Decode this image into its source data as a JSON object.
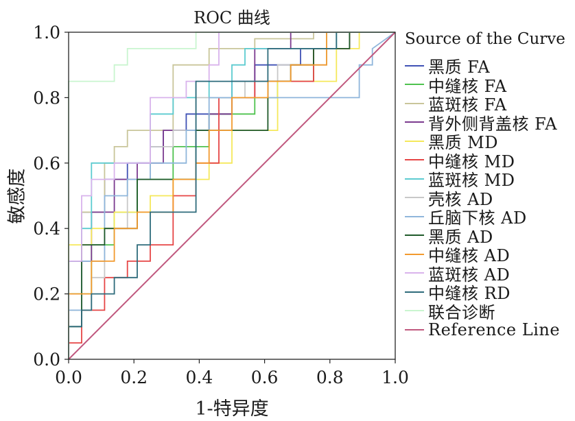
{
  "chart_data": {
    "type": "line",
    "title": "ROC 曲线",
    "xlabel": "1-特异度",
    "ylabel": "敏感度",
    "xlim": [
      0,
      1
    ],
    "ylim": [
      0,
      1
    ],
    "xticks": [
      "0.0",
      "0.2",
      "0.4",
      "0.6",
      "0.8",
      "1.0"
    ],
    "yticks": [
      "0.0",
      "0.2",
      "0.4",
      "0.6",
      "0.8",
      "1.0"
    ],
    "legend_title": "Source of the Curve",
    "legend_position": "right",
    "series": [
      {
        "name": "黑质 FA",
        "color": "#3f51b5",
        "x": [
          0,
          0,
          0.04,
          0.04,
          0.11,
          0.11,
          0.18,
          0.18,
          0.25,
          0.25,
          0.29,
          0.29,
          0.36,
          0.36,
          0.5,
          0.5,
          0.57,
          0.57,
          0.71,
          0.71,
          0.86,
          0.86,
          1
        ],
        "y": [
          0,
          0.3,
          0.3,
          0.45,
          0.45,
          0.55,
          0.55,
          0.6,
          0.6,
          0.65,
          0.65,
          0.7,
          0.7,
          0.75,
          0.75,
          0.85,
          0.85,
          0.9,
          0.9,
          0.95,
          0.95,
          1,
          1
        ]
      },
      {
        "name": "中缝核 FA",
        "color": "#4ec24e",
        "x": [
          0,
          0,
          0.07,
          0.07,
          0.14,
          0.14,
          0.21,
          0.21,
          0.32,
          0.32,
          0.43,
          0.43,
          0.57,
          0.57,
          0.64,
          0.64,
          0.75,
          0.75,
          0.86,
          0.86,
          1
        ],
        "y": [
          0,
          0.2,
          0.2,
          0.35,
          0.35,
          0.45,
          0.45,
          0.55,
          0.55,
          0.65,
          0.65,
          0.75,
          0.75,
          0.8,
          0.8,
          0.85,
          0.85,
          0.95,
          0.95,
          1,
          1
        ]
      },
      {
        "name": "蓝斑核 FA",
        "color": "#c9c59a",
        "x": [
          0,
          0,
          0.04,
          0.04,
          0.11,
          0.11,
          0.14,
          0.14,
          0.18,
          0.18,
          0.32,
          0.32,
          0.43,
          0.43,
          0.57,
          0.57,
          0.75,
          0.75,
          1
        ],
        "y": [
          0,
          0.3,
          0.3,
          0.45,
          0.45,
          0.6,
          0.6,
          0.65,
          0.65,
          0.7,
          0.7,
          0.9,
          0.9,
          0.95,
          0.95,
          0.98,
          0.98,
          1,
          1
        ]
      },
      {
        "name": "背外侧背盖核 FA",
        "color": "#7b3a8f",
        "x": [
          0,
          0,
          0.07,
          0.07,
          0.14,
          0.14,
          0.21,
          0.21,
          0.29,
          0.29,
          0.43,
          0.43,
          0.5,
          0.5,
          0.57,
          0.57,
          0.68,
          0.68,
          1
        ],
        "y": [
          0,
          0.3,
          0.3,
          0.45,
          0.45,
          0.55,
          0.55,
          0.6,
          0.6,
          0.7,
          0.7,
          0.75,
          0.75,
          0.8,
          0.8,
          0.95,
          0.95,
          1,
          1
        ]
      },
      {
        "name": "黑质 MD",
        "color": "#f5e85a",
        "x": [
          0,
          0,
          0.07,
          0.07,
          0.14,
          0.14,
          0.25,
          0.25,
          0.32,
          0.32,
          0.43,
          0.43,
          0.5,
          0.5,
          0.64,
          0.64,
          0.82,
          0.82,
          0.89,
          0.89,
          1
        ],
        "y": [
          0,
          0.35,
          0.35,
          0.4,
          0.4,
          0.45,
          0.45,
          0.5,
          0.5,
          0.55,
          0.55,
          0.6,
          0.6,
          0.7,
          0.7,
          0.85,
          0.85,
          0.95,
          0.95,
          1,
          1
        ]
      },
      {
        "name": "中缝核 MD",
        "color": "#e64545",
        "x": [
          0,
          0,
          0.04,
          0.04,
          0.11,
          0.11,
          0.18,
          0.18,
          0.25,
          0.25,
          0.32,
          0.32,
          0.39,
          0.39,
          0.46,
          0.46,
          0.57,
          0.57,
          0.75,
          0.75,
          0.86,
          0.86,
          1
        ],
        "y": [
          0,
          0.05,
          0.05,
          0.15,
          0.15,
          0.25,
          0.25,
          0.3,
          0.3,
          0.35,
          0.35,
          0.5,
          0.5,
          0.6,
          0.6,
          0.8,
          0.8,
          0.85,
          0.85,
          0.95,
          0.95,
          1,
          1
        ]
      },
      {
        "name": "蓝斑核 MD",
        "color": "#5ccbd0",
        "x": [
          0,
          0,
          0.04,
          0.04,
          0.07,
          0.07,
          0.25,
          0.25,
          0.32,
          0.32,
          0.39,
          0.39,
          0.43,
          0.43,
          0.5,
          0.5,
          0.54,
          0.54,
          0.57,
          0.57,
          0.82,
          0.82,
          1
        ],
        "y": [
          0,
          0.3,
          0.3,
          0.4,
          0.4,
          0.6,
          0.6,
          0.75,
          0.75,
          0.8,
          0.8,
          0.85,
          0.85,
          0.8,
          0.8,
          0.9,
          0.9,
          0.95,
          0.95,
          0.95,
          0.95,
          1,
          1
        ]
      },
      {
        "name": "壳核 AD",
        "color": "#c8c8c8",
        "x": [
          0,
          0,
          0.07,
          0.07,
          0.11,
          0.11,
          0.18,
          0.18,
          0.25,
          0.25,
          0.32,
          0.32,
          0.39,
          0.39,
          0.54,
          0.54,
          0.64,
          0.64,
          0.79,
          0.79,
          1
        ],
        "y": [
          0,
          0.15,
          0.15,
          0.25,
          0.25,
          0.4,
          0.4,
          0.55,
          0.55,
          0.65,
          0.65,
          0.7,
          0.7,
          0.8,
          0.8,
          0.85,
          0.85,
          0.9,
          0.9,
          1,
          1
        ]
      },
      {
        "name": "丘脑下核 AD",
        "color": "#8fb6db",
        "x": [
          0,
          0,
          0.04,
          0.04,
          0.11,
          0.11,
          0.18,
          0.18,
          0.25,
          0.25,
          0.36,
          0.36,
          0.43,
          0.43,
          0.61,
          0.61,
          0.89,
          0.89,
          0.93,
          0.93,
          1
        ],
        "y": [
          0,
          0.15,
          0.15,
          0.3,
          0.3,
          0.5,
          0.5,
          0.55,
          0.55,
          0.6,
          0.6,
          0.7,
          0.7,
          0.8,
          0.8,
          0.8,
          0.8,
          0.9,
          0.9,
          0.95,
          1
        ]
      },
      {
        "name": "黑质 AD",
        "color": "#1f5a2a",
        "x": [
          0,
          0,
          0.04,
          0.04,
          0.11,
          0.11,
          0.21,
          0.21,
          0.39,
          0.39,
          0.61,
          0.61,
          0.68,
          0.68,
          0.75,
          0.75,
          0.86,
          0.86,
          1
        ],
        "y": [
          0,
          0.1,
          0.1,
          0.35,
          0.35,
          0.4,
          0.4,
          0.55,
          0.55,
          0.7,
          0.7,
          0.85,
          0.85,
          0.9,
          0.9,
          0.95,
          0.95,
          1,
          1
        ]
      },
      {
        "name": "中缝核 AD",
        "color": "#f29a2e",
        "x": [
          0,
          0,
          0.07,
          0.07,
          0.14,
          0.14,
          0.21,
          0.21,
          0.32,
          0.32,
          0.39,
          0.39,
          0.43,
          0.43,
          0.5,
          0.5,
          0.61,
          0.61,
          0.68,
          0.68,
          0.79,
          0.79,
          1
        ],
        "y": [
          0,
          0.2,
          0.2,
          0.3,
          0.3,
          0.4,
          0.4,
          0.45,
          0.45,
          0.55,
          0.55,
          0.6,
          0.6,
          0.7,
          0.7,
          0.8,
          0.8,
          0.85,
          0.85,
          0.9,
          0.9,
          1,
          1
        ]
      },
      {
        "name": "蓝斑核 AD",
        "color": "#d9b3ec",
        "x": [
          0,
          0,
          0.04,
          0.04,
          0.07,
          0.07,
          0.14,
          0.14,
          0.25,
          0.25,
          0.36,
          0.36,
          0.43,
          0.43,
          0.46,
          0.46,
          0.54,
          0.54,
          1
        ],
        "y": [
          0,
          0.3,
          0.3,
          0.5,
          0.5,
          0.55,
          0.55,
          0.6,
          0.6,
          0.8,
          0.8,
          0.85,
          0.85,
          0.9,
          0.9,
          1,
          1,
          1,
          1
        ]
      },
      {
        "name": "中缝核 RD",
        "color": "#2e6b7b",
        "x": [
          0,
          0,
          0.04,
          0.04,
          0.07,
          0.07,
          0.14,
          0.14,
          0.21,
          0.21,
          0.25,
          0.25,
          0.39,
          0.39,
          0.61,
          0.61,
          0.82,
          0.82,
          0.93,
          0.93,
          1
        ],
        "y": [
          0,
          0.1,
          0.1,
          0.15,
          0.15,
          0.2,
          0.2,
          0.25,
          0.25,
          0.35,
          0.35,
          0.45,
          0.45,
          0.85,
          0.85,
          0.95,
          0.95,
          1,
          1,
          1,
          1
        ]
      },
      {
        "name": "联合诊断",
        "color": "#c9f5cf",
        "x": [
          0,
          0,
          0.14,
          0.14,
          0.18,
          0.18,
          0.39,
          0.39,
          1
        ],
        "y": [
          0,
          0.85,
          0.85,
          0.9,
          0.9,
          0.95,
          0.95,
          1,
          1
        ]
      },
      {
        "name": "Reference Line",
        "color": "#c0587e",
        "x": [
          0,
          1
        ],
        "y": [
          0,
          1
        ]
      }
    ]
  }
}
